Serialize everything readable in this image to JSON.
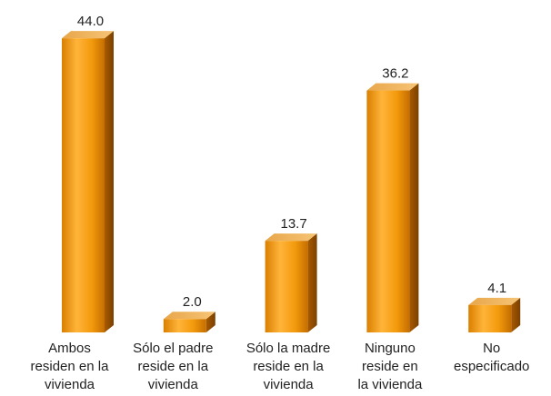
{
  "chart_data": {
    "type": "bar3d",
    "categories": [
      [
        "Ambos",
        "residen en la",
        "vivienda"
      ],
      [
        "Sólo el padre",
        "reside en la",
        "vivienda"
      ],
      [
        "Sólo la madre",
        "reside en la",
        "vivienda"
      ],
      [
        "Ninguno",
        "reside en",
        "la vivienda"
      ],
      [
        "No",
        "especificado"
      ]
    ],
    "values": [
      44.0,
      2.0,
      13.7,
      36.2,
      4.1
    ],
    "value_labels": [
      "44.0",
      "2.0",
      "13.7",
      "36.2",
      "4.1"
    ],
    "color": "#f39a0c"
  }
}
